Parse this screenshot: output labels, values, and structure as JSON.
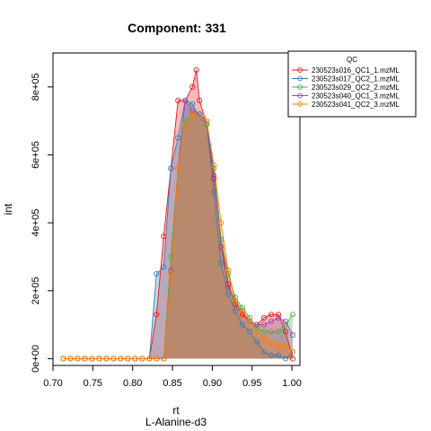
{
  "chart_data": {
    "type": "area",
    "title": "Component: 331",
    "xlabel": "rt",
    "sublabel": "L-Alanine-d3",
    "ylabel": "int",
    "xlim": [
      0.7,
      1.01
    ],
    "ylim": [
      -20000,
      900000
    ],
    "x_ticks": [
      0.7,
      0.75,
      0.8,
      0.85,
      0.9,
      0.95,
      1.0
    ],
    "x_tick_labels": [
      "0.70",
      "0.75",
      "0.80",
      "0.85",
      "0.90",
      "0.95",
      "1.00"
    ],
    "y_ticks": [
      0,
      200000,
      400000,
      600000,
      800000
    ],
    "y_tick_labels": [
      "0e+00",
      "2e+05",
      "4e+05",
      "6e+05",
      "8e+05"
    ],
    "legend": {
      "title": "QC",
      "position": "top-right"
    },
    "series": [
      {
        "name": "230523s016_QC1_1.mzML",
        "color": "#E41A1C",
        "marker": "circle",
        "x": [
          0.713,
          0.722,
          0.731,
          0.74,
          0.749,
          0.758,
          0.767,
          0.776,
          0.785,
          0.794,
          0.803,
          0.812,
          0.821,
          0.83,
          0.839,
          0.848,
          0.857,
          0.866,
          0.875,
          0.88,
          0.884,
          0.893,
          0.902,
          0.911,
          0.92,
          0.929,
          0.938,
          0.947,
          0.956,
          0.965,
          0.974,
          0.983,
          0.992,
          1.001
        ],
        "y": [
          0,
          0,
          0,
          0,
          0,
          0,
          0,
          0,
          0,
          0,
          0,
          0,
          0,
          130000,
          360000,
          560000,
          760000,
          760000,
          800000,
          850000,
          760000,
          690000,
          530000,
          350000,
          220000,
          160000,
          130000,
          110000,
          100000,
          120000,
          130000,
          130000,
          80000,
          0
        ]
      },
      {
        "name": "230523s017_QC2_1.mzML",
        "color": "#377EB8",
        "marker": "circle",
        "x": [
          0.713,
          0.722,
          0.731,
          0.74,
          0.749,
          0.758,
          0.767,
          0.776,
          0.785,
          0.794,
          0.803,
          0.812,
          0.821,
          0.83,
          0.839,
          0.848,
          0.857,
          0.866,
          0.875,
          0.884,
          0.893,
          0.902,
          0.911,
          0.92,
          0.929,
          0.938,
          0.947,
          0.956,
          0.965,
          0.974,
          0.983,
          0.992,
          1.001
        ],
        "y": [
          0,
          0,
          0,
          0,
          0,
          0,
          0,
          0,
          0,
          0,
          0,
          0,
          0,
          250000,
          270000,
          560000,
          650000,
          760000,
          750000,
          710000,
          690000,
          490000,
          280000,
          190000,
          140000,
          100000,
          80000,
          50000,
          20000,
          10000,
          10000,
          0,
          20000
        ]
      },
      {
        "name": "230523s029_QC2_2.mzML",
        "color": "#4DAF4A",
        "marker": "circle",
        "x": [
          0.713,
          0.722,
          0.731,
          0.74,
          0.749,
          0.758,
          0.767,
          0.776,
          0.785,
          0.794,
          0.803,
          0.812,
          0.821,
          0.83,
          0.839,
          0.848,
          0.857,
          0.866,
          0.875,
          0.884,
          0.893,
          0.902,
          0.911,
          0.92,
          0.929,
          0.938,
          0.947,
          0.956,
          0.965,
          0.974,
          0.983,
          0.992,
          1.001
        ],
        "y": [
          0,
          0,
          0,
          0,
          0,
          0,
          0,
          0,
          0,
          0,
          0,
          0,
          0,
          0,
          0,
          300000,
          560000,
          700000,
          720000,
          720000,
          690000,
          560000,
          350000,
          250000,
          180000,
          150000,
          120000,
          90000,
          80000,
          80000,
          80000,
          100000,
          130000
        ]
      },
      {
        "name": "230523s040_QC1_3.mzML",
        "color": "#984EA3",
        "marker": "circle",
        "x": [
          0.713,
          0.722,
          0.731,
          0.74,
          0.749,
          0.758,
          0.767,
          0.776,
          0.785,
          0.794,
          0.803,
          0.812,
          0.821,
          0.83,
          0.839,
          0.848,
          0.857,
          0.866,
          0.875,
          0.884,
          0.893,
          0.902,
          0.911,
          0.92,
          0.929,
          0.938,
          0.947,
          0.956,
          0.965,
          0.974,
          0.983,
          0.992,
          1.001
        ],
        "y": [
          0,
          0,
          0,
          0,
          0,
          0,
          0,
          0,
          0,
          0,
          0,
          0,
          0,
          0,
          0,
          260000,
          560000,
          760000,
          730000,
          720000,
          700000,
          540000,
          330000,
          210000,
          170000,
          140000,
          110000,
          100000,
          100000,
          110000,
          120000,
          110000,
          70000
        ]
      },
      {
        "name": "230523s041_QC2_3.mzML",
        "color": "#FF7F00",
        "marker": "circle",
        "x": [
          0.713,
          0.722,
          0.731,
          0.74,
          0.749,
          0.758,
          0.767,
          0.776,
          0.785,
          0.794,
          0.803,
          0.812,
          0.821,
          0.83,
          0.839,
          0.848,
          0.857,
          0.866,
          0.875,
          0.884,
          0.893,
          0.902,
          0.911,
          0.92,
          0.929,
          0.938,
          0.947,
          0.956,
          0.965,
          0.974,
          0.983,
          0.992,
          1.001
        ],
        "y": [
          0,
          0,
          0,
          0,
          0,
          0,
          0,
          0,
          0,
          0,
          0,
          0,
          0,
          0,
          0,
          250000,
          560000,
          690000,
          720000,
          710000,
          700000,
          570000,
          400000,
          260000,
          170000,
          140000,
          110000,
          80000,
          60000,
          50000,
          40000,
          40000,
          20000
        ]
      }
    ]
  }
}
